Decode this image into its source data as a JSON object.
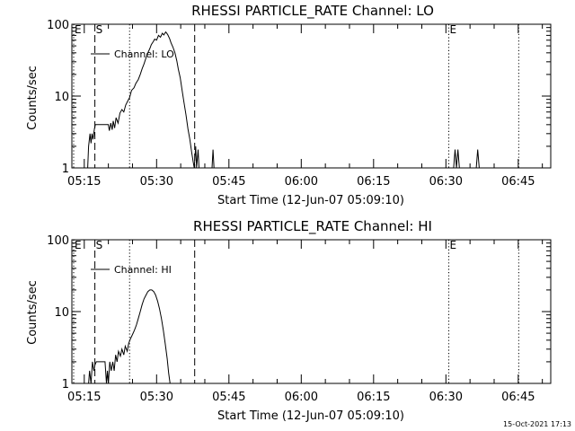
{
  "chart_data": [
    {
      "type": "line",
      "title": "RHESSI PARTICLE_RATE Channel: LO",
      "xlabel": "Start Time (12-Jun-07 05:09:10)",
      "ylabel": "Counts/sec",
      "yscale": "log",
      "ylim": [
        1,
        100
      ],
      "xlim_minutes": [
        315,
        413
      ],
      "x_ticks": [
        {
          "minute": 315,
          "label": "05:15"
        },
        {
          "minute": 330,
          "label": "05:30"
        },
        {
          "minute": 345,
          "label": "05:45"
        },
        {
          "minute": 360,
          "label": "06:00"
        },
        {
          "minute": 375,
          "label": "06:15"
        },
        {
          "minute": 390,
          "label": "06:30"
        },
        {
          "minute": 405,
          "label": "06:45"
        }
      ],
      "y_ticks": [
        {
          "value": 1,
          "label": "1"
        },
        {
          "value": 10,
          "label": "10"
        },
        {
          "value": 100,
          "label": "100"
        }
      ],
      "legend": "Channel: LO",
      "markers": [
        {
          "minute": 312.8,
          "label": "E",
          "style": "dotted"
        },
        {
          "minute": 317.2,
          "label": "S",
          "style": "dashed"
        },
        {
          "minute": 324.4,
          "label": "",
          "style": "dotted"
        },
        {
          "minute": 337.9,
          "label": "",
          "style": "dashed"
        },
        {
          "minute": 390.6,
          "label": "E",
          "style": "dotted"
        },
        {
          "minute": 405.1,
          "label": "",
          "style": "dotted"
        }
      ],
      "series": [
        {
          "name": "Channel: LO",
          "points": [
            [
              312.5,
              1
            ],
            [
              315.7,
              1
            ],
            [
              315.9,
              2
            ],
            [
              316.2,
              3
            ],
            [
              316.4,
              2.2
            ],
            [
              316.6,
              3
            ],
            [
              316.8,
              2.5
            ],
            [
              317.1,
              3.5
            ],
            [
              317.3,
              4
            ],
            [
              320.0,
              4
            ],
            [
              320.2,
              3.3
            ],
            [
              320.5,
              4.2
            ],
            [
              320.8,
              3.4
            ],
            [
              321.0,
              4.5
            ],
            [
              321.3,
              3.6
            ],
            [
              321.6,
              5
            ],
            [
              322.0,
              4.2
            ],
            [
              322.4,
              5.8
            ],
            [
              322.8,
              6.5
            ],
            [
              323.2,
              6
            ],
            [
              323.6,
              7.5
            ],
            [
              324.0,
              8.5
            ],
            [
              324.4,
              9.5
            ],
            [
              324.8,
              12
            ],
            [
              325.3,
              13
            ],
            [
              325.7,
              15
            ],
            [
              326.2,
              17
            ],
            [
              326.6,
              20
            ],
            [
              327.0,
              24
            ],
            [
              327.4,
              28
            ],
            [
              327.8,
              34
            ],
            [
              328.2,
              40
            ],
            [
              328.6,
              46
            ],
            [
              328.9,
              52
            ],
            [
              329.3,
              57
            ],
            [
              329.6,
              62
            ],
            [
              330.0,
              60
            ],
            [
              330.4,
              70
            ],
            [
              330.8,
              66
            ],
            [
              331.2,
              75
            ],
            [
              331.5,
              71
            ],
            [
              331.9,
              78
            ],
            [
              332.3,
              72
            ],
            [
              332.7,
              63
            ],
            [
              333.0,
              55
            ],
            [
              333.4,
              48
            ],
            [
              333.8,
              40
            ],
            [
              334.2,
              31
            ],
            [
              334.5,
              24
            ],
            [
              334.9,
              18
            ],
            [
              335.3,
              12
            ],
            [
              335.7,
              8
            ],
            [
              336.1,
              5.5
            ],
            [
              336.5,
              3.5
            ],
            [
              336.9,
              2.5
            ],
            [
              337.3,
              1.6
            ],
            [
              337.6,
              1.2
            ],
            [
              337.8,
              1
            ],
            [
              338.1,
              2
            ],
            [
              338.3,
              1
            ],
            [
              338.6,
              1.8
            ],
            [
              338.8,
              1
            ],
            [
              341.5,
              1
            ],
            [
              341.7,
              1.8
            ],
            [
              341.9,
              1
            ],
            [
              391.6,
              1
            ],
            [
              391.9,
              1.8
            ],
            [
              392.2,
              1
            ],
            [
              392.5,
              1.8
            ],
            [
              392.8,
              1
            ],
            [
              396.3,
              1
            ],
            [
              396.6,
              1.8
            ],
            [
              396.9,
              1
            ]
          ]
        }
      ]
    },
    {
      "type": "line",
      "title": "RHESSI PARTICLE_RATE Channel: HI",
      "xlabel": "Start Time (12-Jun-07 05:09:10)",
      "ylabel": "Counts/sec",
      "yscale": "log",
      "ylim": [
        1,
        100
      ],
      "xlim_minutes": [
        315,
        413
      ],
      "x_ticks": [
        {
          "minute": 315,
          "label": "05:15"
        },
        {
          "minute": 330,
          "label": "05:30"
        },
        {
          "minute": 345,
          "label": "05:45"
        },
        {
          "minute": 360,
          "label": "06:00"
        },
        {
          "minute": 375,
          "label": "06:15"
        },
        {
          "minute": 390,
          "label": "06:30"
        },
        {
          "minute": 405,
          "label": "06:45"
        }
      ],
      "y_ticks": [
        {
          "value": 1,
          "label": "1"
        },
        {
          "value": 10,
          "label": "10"
        },
        {
          "value": 100,
          "label": "100"
        }
      ],
      "legend": "Channel: HI",
      "markers": [
        {
          "minute": 312.8,
          "label": "E",
          "style": "dotted"
        },
        {
          "minute": 317.2,
          "label": "S",
          "style": "dashed"
        },
        {
          "minute": 324.4,
          "label": "",
          "style": "dotted"
        },
        {
          "minute": 337.9,
          "label": "",
          "style": "dashed"
        },
        {
          "minute": 390.6,
          "label": "E",
          "style": "dotted"
        },
        {
          "minute": 405.1,
          "label": "",
          "style": "dotted"
        }
      ],
      "series": [
        {
          "name": "Channel: HI",
          "points": [
            [
              312.5,
              1
            ],
            [
              315.9,
              1
            ],
            [
              316.1,
              1.5
            ],
            [
              316.4,
              1
            ],
            [
              316.7,
              2
            ],
            [
              317.0,
              1.5
            ],
            [
              317.2,
              1.8
            ],
            [
              317.5,
              2
            ],
            [
              319.3,
              2
            ],
            [
              319.6,
              1
            ],
            [
              319.8,
              1.5
            ],
            [
              320.0,
              1
            ],
            [
              320.3,
              2
            ],
            [
              320.6,
              1.5
            ],
            [
              320.9,
              2
            ],
            [
              321.2,
              1.5
            ],
            [
              321.5,
              2.5
            ],
            [
              321.8,
              2
            ],
            [
              322.1,
              2.8
            ],
            [
              322.5,
              2.4
            ],
            [
              322.8,
              3
            ],
            [
              323.2,
              2.5
            ],
            [
              323.5,
              3.3
            ],
            [
              323.9,
              2.8
            ],
            [
              324.2,
              3.6
            ],
            [
              324.6,
              4.2
            ],
            [
              325.0,
              4.8
            ],
            [
              325.4,
              5.5
            ],
            [
              325.8,
              6.5
            ],
            [
              326.2,
              8
            ],
            [
              326.6,
              10
            ],
            [
              327.0,
              12.5
            ],
            [
              327.4,
              15
            ],
            [
              327.8,
              17
            ],
            [
              328.2,
              19
            ],
            [
              328.6,
              20
            ],
            [
              329.0,
              20
            ],
            [
              329.4,
              19
            ],
            [
              329.8,
              17
            ],
            [
              330.2,
              14
            ],
            [
              330.6,
              11
            ],
            [
              331.0,
              8
            ],
            [
              331.4,
              5.5
            ],
            [
              331.8,
              3.5
            ],
            [
              332.2,
              2.2
            ],
            [
              332.5,
              1.4
            ],
            [
              332.8,
              1
            ]
          ]
        }
      ]
    }
  ],
  "footer": {
    "timestamp": "15-Oct-2021 17:13"
  }
}
